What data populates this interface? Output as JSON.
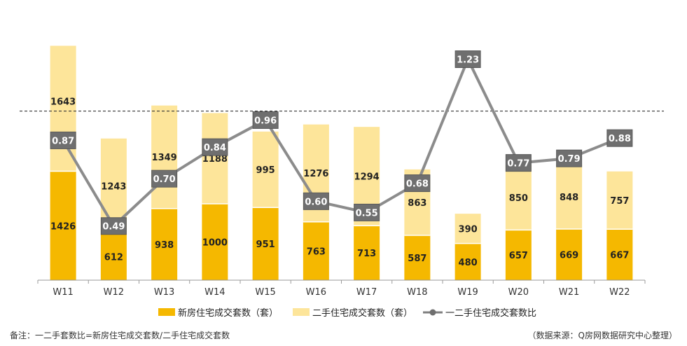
{
  "chart_data": {
    "type": "bar",
    "stacked": true,
    "categories": [
      "W11",
      "W12",
      "W13",
      "W14",
      "W15",
      "W16",
      "W17",
      "W18",
      "W19",
      "W20",
      "W21",
      "W22"
    ],
    "series": [
      {
        "name": "新房住宅成交套数（套）",
        "type": "bar",
        "color": "#f5b800",
        "values": [
          1426,
          612,
          938,
          1000,
          951,
          763,
          713,
          587,
          480,
          657,
          669,
          667
        ]
      },
      {
        "name": "二手住宅成交套数（套）",
        "type": "bar",
        "color": "#fde59a",
        "values": [
          1643,
          1243,
          1349,
          1188,
          995,
          1276,
          1294,
          863,
          390,
          850,
          848,
          757
        ]
      },
      {
        "name": "一二手住宅成交套数比",
        "type": "line",
        "color": "#7f7f7f",
        "values": [
          0.87,
          0.49,
          0.7,
          0.84,
          0.96,
          0.6,
          0.55,
          0.68,
          1.23,
          0.77,
          0.79,
          0.88
        ],
        "labels": [
          "0.87",
          "0.49",
          "0.70",
          "0.84",
          "0.96",
          "0.60",
          "0.55",
          "0.68",
          "1.23",
          "0.77",
          "0.79",
          "0.88"
        ]
      }
    ],
    "bar_ylim": [
      0,
      3100
    ],
    "ratio_ylim": [
      0.25,
      1.3
    ],
    "reference_line": 1.0,
    "legend_position": "bottom",
    "grid": false
  },
  "footnote_left": "备注：一二手套数比=新房住宅成交套数/二手住宅成交套数",
  "footnote_right": "（数据来源：Q房网数据研究中心整理）"
}
